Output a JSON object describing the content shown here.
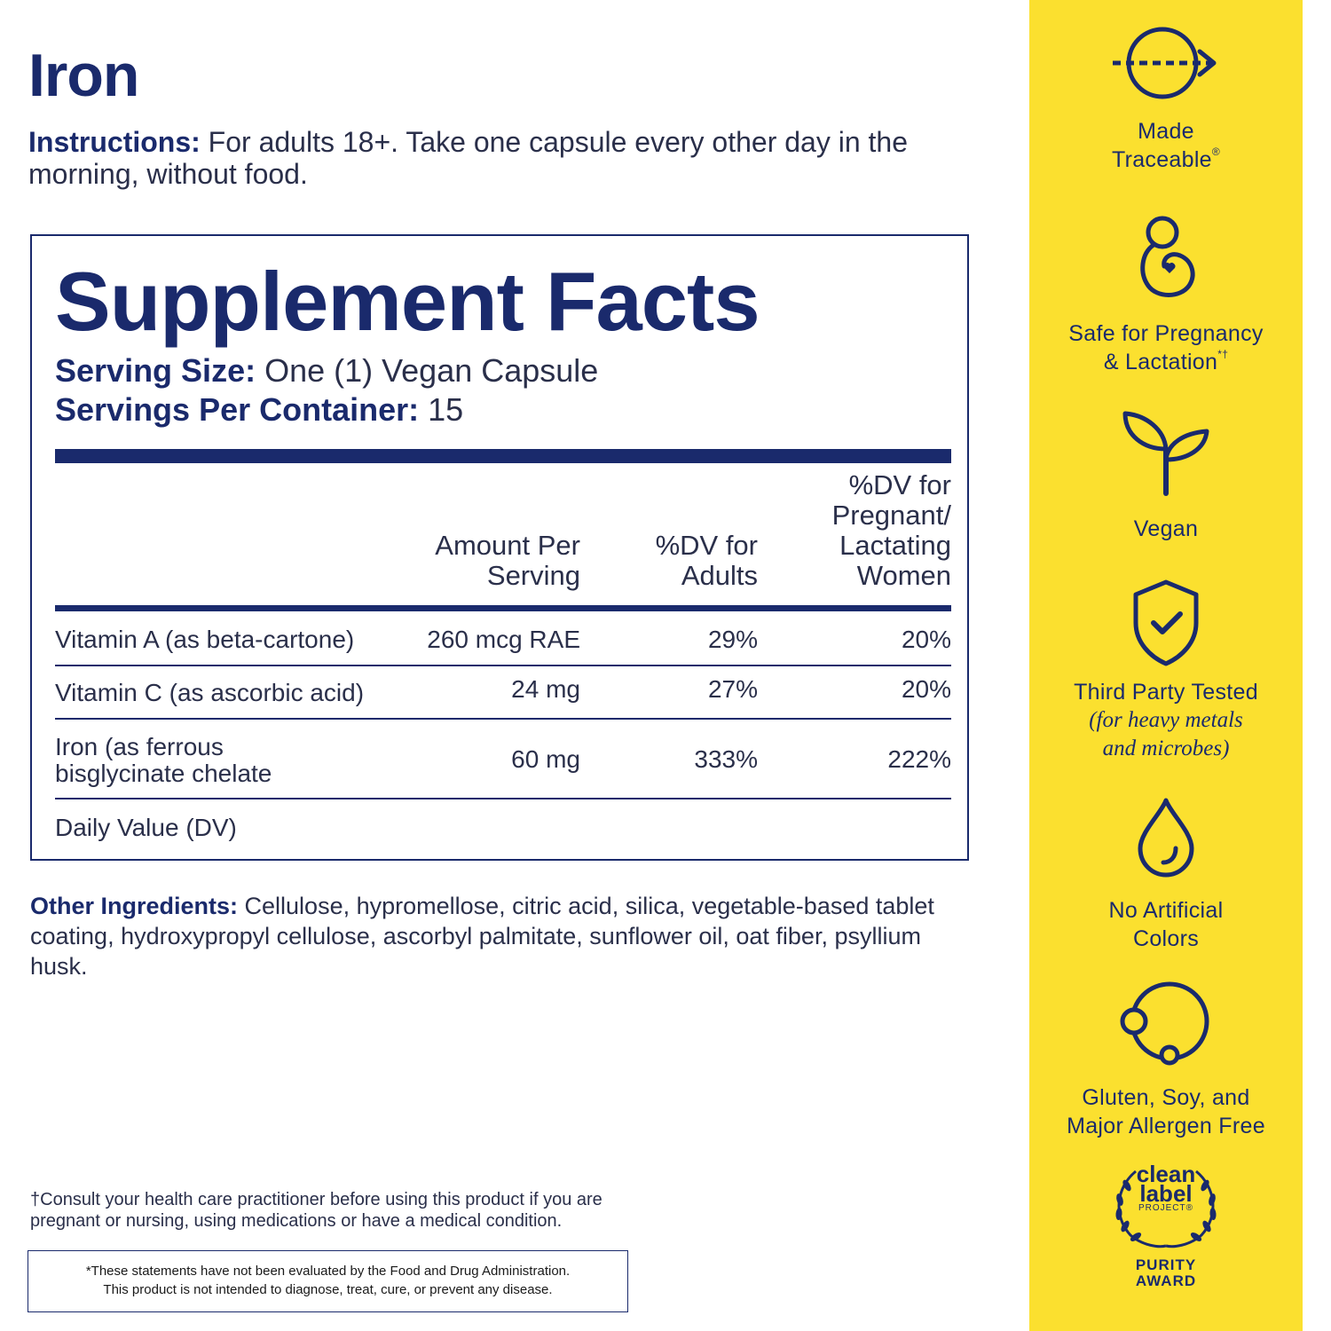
{
  "title": "Iron",
  "instructions": {
    "label": "Instructions:",
    "text": " For adults 18+. Take one capsule every other day in the morning, without food."
  },
  "facts": {
    "heading": "Supplement Facts",
    "serving_size_label": "Serving Size:",
    "serving_size_value": " One (1) Vegan Capsule",
    "servings_per_label": "Servings Per Container:",
    "servings_per_value": " 15",
    "headers": {
      "amount": [
        "Amount Per",
        "Serving"
      ],
      "adults": [
        "%DV for",
        "Adults"
      ],
      "pregnant": [
        "%DV for",
        "Pregnant/",
        "Lactating",
        "Women"
      ]
    },
    "rows": [
      {
        "name": [
          "Vitamin A (as beta-cartone)"
        ],
        "amount": "260 mcg RAE",
        "dv_adults": "29%",
        "dv_pregnant": "20%"
      },
      {
        "name": [
          "Vitamin C (as ascorbic acid)"
        ],
        "amount": "24 mg",
        "dv_adults": "27%",
        "dv_pregnant": "20%"
      },
      {
        "name": [
          "Iron (as ferrous",
          "bisglycinate chelate"
        ],
        "amount": "60 mg",
        "dv_adults": "333%",
        "dv_pregnant": "222%"
      }
    ],
    "daily_value_note": "Daily Value (DV)"
  },
  "other_ingredients": {
    "label": "Other Ingredients:",
    "text": " Cellulose, hypromellose, citric acid, silica, vegetable-based tablet coating, hydroxypropyl cellulose, ascorbyl palmitate, sunflower oil, oat fiber, psyllium husk."
  },
  "footnote": "†Consult your health care practitioner before using this product if you are pregnant or nursing, using medications or have a medical condition.",
  "fda": {
    "line1": "*These statements have not been evaluated by the Food and Drug Administration.",
    "line2": "This product is not intended to diagnose, treat, cure, or prevent any disease."
  },
  "colors": {
    "navy": "#1a2a6c",
    "yellow": "#fbe02f"
  },
  "badges": [
    {
      "icon": "traceable-arrow-icon",
      "lines": [
        "Made",
        "Traceable"
      ],
      "mark": "®"
    },
    {
      "icon": "pregnancy-icon",
      "lines": [
        "Safe for Pregnancy",
        "& Lactation"
      ],
      "mark": "*†"
    },
    {
      "icon": "sprout-icon",
      "lines": [
        "Vegan"
      ]
    },
    {
      "icon": "shield-check-icon",
      "lines": [
        "Third Party Tested"
      ],
      "sub": [
        "(for heavy metals",
        "and microbes)"
      ]
    },
    {
      "icon": "drop-icon",
      "lines": [
        "No Artificial",
        "Colors"
      ]
    },
    {
      "icon": "allergen-free-icon",
      "lines": [
        "Gluten, Soy, and",
        "Major Allergen Free"
      ]
    }
  ],
  "award": {
    "logo_lines": [
      "clean",
      "label"
    ],
    "project": "PROJECT",
    "project_mark": "®",
    "award_lines": [
      "PURITY",
      "AWARD"
    ]
  }
}
